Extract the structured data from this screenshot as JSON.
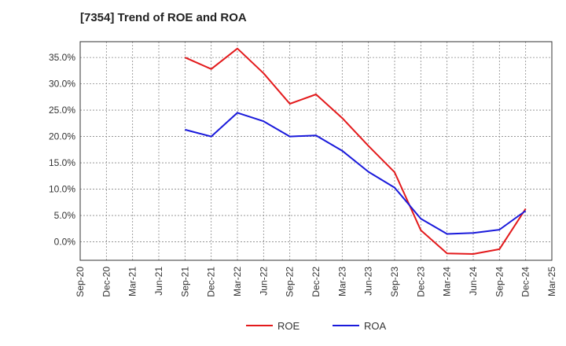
{
  "chart_data": {
    "type": "line",
    "title": "[7354]  Trend of ROE and ROA",
    "x_categories": [
      "Sep-20",
      "Dec-20",
      "Mar-21",
      "Jun-21",
      "Sep-21",
      "Dec-21",
      "Mar-22",
      "Jun-22",
      "Sep-22",
      "Dec-22",
      "Mar-23",
      "Jun-23",
      "Sep-23",
      "Dec-23",
      "Mar-24",
      "Jun-24",
      "Sep-24",
      "Dec-24",
      "Mar-25"
    ],
    "y_ticks": [
      0,
      5,
      10,
      15,
      20,
      25,
      30,
      35
    ],
    "y_tick_labels": [
      "0.0%",
      "5.0%",
      "10.0%",
      "15.0%",
      "20.0%",
      "25.0%",
      "30.0%",
      "35.0%"
    ],
    "ylim": [
      -3.5,
      38
    ],
    "grid": true,
    "legend_position": "bottom-center",
    "series": [
      {
        "name": "ROE",
        "color": "#e31a1c",
        "points": [
          {
            "x": "Sep-21",
            "y": 35.0
          },
          {
            "x": "Dec-21",
            "y": 32.8
          },
          {
            "x": "Mar-22",
            "y": 36.7
          },
          {
            "x": "Jun-22",
            "y": 32.0
          },
          {
            "x": "Sep-22",
            "y": 26.2
          },
          {
            "x": "Dec-22",
            "y": 28.0
          },
          {
            "x": "Mar-23",
            "y": 23.5
          },
          {
            "x": "Jun-23",
            "y": 18.2
          },
          {
            "x": "Sep-23",
            "y": 13.2
          },
          {
            "x": "Dec-23",
            "y": 2.2
          },
          {
            "x": "Mar-24",
            "y": -2.2
          },
          {
            "x": "Jun-24",
            "y": -2.3
          },
          {
            "x": "Sep-24",
            "y": -1.4
          },
          {
            "x": "Dec-24",
            "y": 6.3
          }
        ]
      },
      {
        "name": "ROA",
        "color": "#1a1adb",
        "points": [
          {
            "x": "Sep-21",
            "y": 21.3
          },
          {
            "x": "Dec-21",
            "y": 20.0
          },
          {
            "x": "Mar-22",
            "y": 24.5
          },
          {
            "x": "Jun-22",
            "y": 22.9
          },
          {
            "x": "Sep-22",
            "y": 20.0
          },
          {
            "x": "Dec-22",
            "y": 20.2
          },
          {
            "x": "Mar-23",
            "y": 17.3
          },
          {
            "x": "Jun-23",
            "y": 13.3
          },
          {
            "x": "Sep-23",
            "y": 10.3
          },
          {
            "x": "Dec-23",
            "y": 4.4
          },
          {
            "x": "Mar-24",
            "y": 1.5
          },
          {
            "x": "Jun-24",
            "y": 1.7
          },
          {
            "x": "Sep-24",
            "y": 2.3
          },
          {
            "x": "Dec-24",
            "y": 5.9
          }
        ]
      }
    ]
  }
}
